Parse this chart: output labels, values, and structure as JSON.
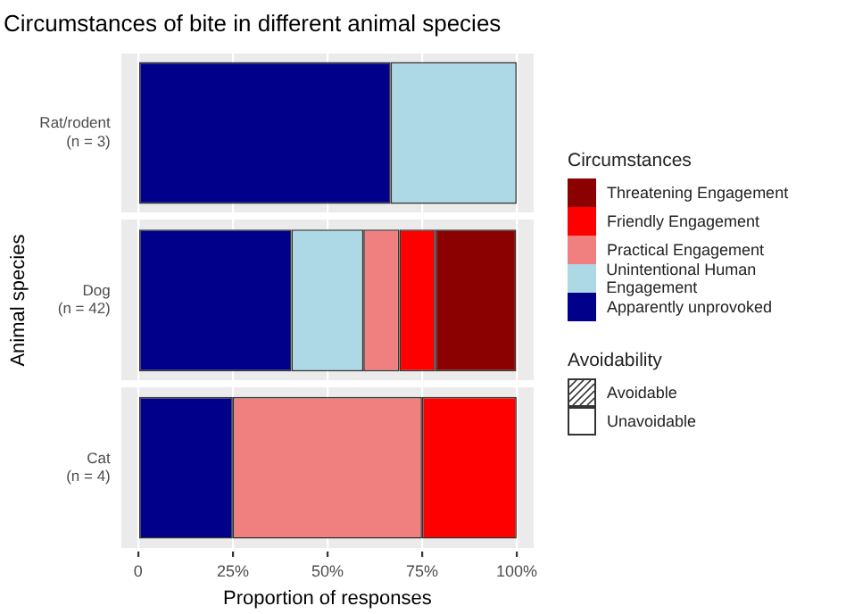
{
  "chart_data": {
    "type": "bar",
    "orientation": "horizontal",
    "stacked": true,
    "title": "Circumstances of bite in different animal species",
    "xlabel": "Proportion of responses",
    "ylabel": "Animal species",
    "legend_title": "Circumstances",
    "legend": "right",
    "categories": [
      "Rat/rodent\n(n = 3)",
      "Dog\n(n = 42)",
      "Cat\n(n = 4)"
    ],
    "series": [
      {
        "name": "Apparently unprovoked",
        "color": "#00008b",
        "values": [
          0.667,
          0.405,
          0.25
        ]
      },
      {
        "name": "Unintentional Human Engagement",
        "color": "#add8e6",
        "values": [
          0.333,
          0.19,
          0
        ]
      },
      {
        "name": "Practical Engagement",
        "color": "#f08080",
        "values": [
          0,
          0.095,
          0.5
        ]
      },
      {
        "name": "Friendly Engagement",
        "color": "#ff0000",
        "values": [
          0,
          0.095,
          0.25
        ]
      },
      {
        "name": "Threatening Engagement",
        "color": "#8b0000",
        "values": [
          0,
          0.214,
          0
        ]
      }
    ],
    "annotations": [
      "Avoidability",
      "Avoidable",
      "Unavoidable"
    ],
    "xlim": [
      -0.045,
      1.045
    ],
    "xticks": [
      {
        "value": 0,
        "label": "0"
      },
      {
        "value": 0.25,
        "label": "25%"
      },
      {
        "value": 0.5,
        "label": "50%"
      },
      {
        "value": 0.75,
        "label": "75%"
      },
      {
        "value": 1,
        "label": "100%"
      }
    ],
    "grid": true
  }
}
